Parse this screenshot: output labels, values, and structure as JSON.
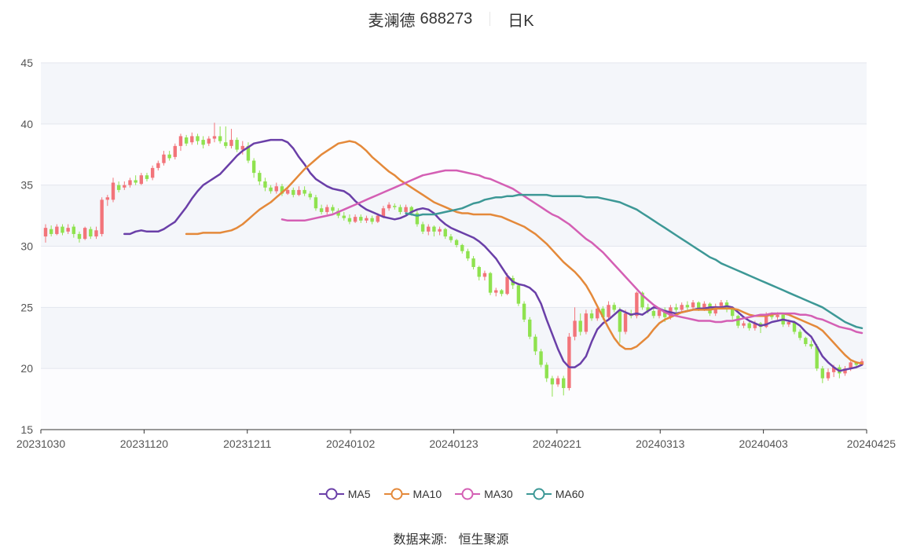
{
  "header": {
    "name": "麦澜德",
    "code": "688273",
    "period": "日K"
  },
  "footer": {
    "source_label": "数据来源:",
    "source_name": "恒生聚源"
  },
  "chart_data": {
    "type": "candlestick",
    "title": "麦澜德 688273 日K",
    "ylim": [
      15,
      45
    ],
    "yticks": [
      15,
      20,
      25,
      30,
      35,
      40,
      45
    ],
    "xtick_labels": [
      "20231030",
      "20231120",
      "20231211",
      "20240102",
      "20240123",
      "20240221",
      "20240313",
      "20240403",
      "20240425"
    ],
    "colors": {
      "up": "#f2747a",
      "down": "#8fe24f",
      "MA5": "#6a3fa8",
      "MA10": "#e4893a",
      "MA30": "#d45fb4",
      "MA60": "#3d9896"
    },
    "candles": [
      [
        30.8,
        31.5,
        30.3,
        31.8
      ],
      [
        31.4,
        31.0,
        30.8,
        31.7
      ],
      [
        31.0,
        31.6,
        30.9,
        31.8
      ],
      [
        31.6,
        31.1,
        30.9,
        31.8
      ],
      [
        31.2,
        31.5,
        31.0,
        31.8
      ],
      [
        31.6,
        31.0,
        30.7,
        31.8
      ],
      [
        31.0,
        30.6,
        30.3,
        31.2
      ],
      [
        30.6,
        31.5,
        30.5,
        31.6
      ],
      [
        31.4,
        30.8,
        30.6,
        31.6
      ],
      [
        30.8,
        31.3,
        30.6,
        31.6
      ],
      [
        31.0,
        33.8,
        30.8,
        34.0
      ],
      [
        33.8,
        34.0,
        33.3,
        34.2
      ],
      [
        33.8,
        35.2,
        33.6,
        35.6
      ],
      [
        35.0,
        34.6,
        34.4,
        35.3
      ],
      [
        34.8,
        35.0,
        34.6,
        35.3
      ],
      [
        35.0,
        35.4,
        34.8,
        35.6
      ],
      [
        35.4,
        35.2,
        35.0,
        35.8
      ],
      [
        35.1,
        35.8,
        35.0,
        36.0
      ],
      [
        35.8,
        35.5,
        35.3,
        36.0
      ],
      [
        35.6,
        36.4,
        35.4,
        36.6
      ],
      [
        36.4,
        36.8,
        36.2,
        37.0
      ],
      [
        36.8,
        37.5,
        36.6,
        37.8
      ],
      [
        37.5,
        37.2,
        37.0,
        37.8
      ],
      [
        37.3,
        38.2,
        37.1,
        38.4
      ],
      [
        38.2,
        39.0,
        37.8,
        39.2
      ],
      [
        38.9,
        38.4,
        38.2,
        39.1
      ],
      [
        38.5,
        39.0,
        38.3,
        39.3
      ],
      [
        39.0,
        38.6,
        38.3,
        39.2
      ],
      [
        38.7,
        38.3,
        38.0,
        39.0
      ],
      [
        38.4,
        38.8,
        38.2,
        39.0
      ],
      [
        38.8,
        39.0,
        38.5,
        40.1
      ],
      [
        39.0,
        38.6,
        38.4,
        39.8
      ],
      [
        38.5,
        38.2,
        38.0,
        39.8
      ],
      [
        38.2,
        38.7,
        38.0,
        39.6
      ],
      [
        38.7,
        37.9,
        37.7,
        38.9
      ],
      [
        37.9,
        38.2,
        37.5,
        38.6
      ],
      [
        38.2,
        37.0,
        36.8,
        38.5
      ],
      [
        37.0,
        36.0,
        35.6,
        37.2
      ],
      [
        36.0,
        35.3,
        35.0,
        36.2
      ],
      [
        35.3,
        34.8,
        34.5,
        35.6
      ],
      [
        34.8,
        34.5,
        34.3,
        35.0
      ],
      [
        34.5,
        34.9,
        34.3,
        35.2
      ],
      [
        34.9,
        34.3,
        34.1,
        35.1
      ],
      [
        34.3,
        34.6,
        34.2,
        34.9
      ],
      [
        34.6,
        34.2,
        34.0,
        34.8
      ],
      [
        34.2,
        34.6,
        34.1,
        34.9
      ],
      [
        34.6,
        34.3,
        34.1,
        34.9
      ],
      [
        34.3,
        34.0,
        33.8,
        34.5
      ],
      [
        34.0,
        33.1,
        32.9,
        34.2
      ],
      [
        33.1,
        32.8,
        32.6,
        33.4
      ],
      [
        32.8,
        33.2,
        32.6,
        33.4
      ],
      [
        33.2,
        32.9,
        32.7,
        33.4
      ],
      [
        32.9,
        32.5,
        32.3,
        33.1
      ],
      [
        32.5,
        32.3,
        32.1,
        32.8
      ],
      [
        32.3,
        32.0,
        31.8,
        32.6
      ],
      [
        32.0,
        32.4,
        31.9,
        32.6
      ],
      [
        32.4,
        32.1,
        31.9,
        32.6
      ],
      [
        32.1,
        32.3,
        31.9,
        32.5
      ],
      [
        32.3,
        32.0,
        31.8,
        32.5
      ],
      [
        32.0,
        32.5,
        31.9,
        32.7
      ],
      [
        32.4,
        33.1,
        32.3,
        33.3
      ],
      [
        33.1,
        33.4,
        32.9,
        33.6
      ],
      [
        33.3,
        33.2,
        33.0,
        33.5
      ],
      [
        33.2,
        32.8,
        32.6,
        33.4
      ],
      [
        32.8,
        33.2,
        32.6,
        33.4
      ],
      [
        33.2,
        32.7,
        32.5,
        33.3
      ],
      [
        32.7,
        31.8,
        31.6,
        32.9
      ],
      [
        31.8,
        31.2,
        31.0,
        32.0
      ],
      [
        31.2,
        31.6,
        30.9,
        31.8
      ],
      [
        31.6,
        31.2,
        30.8,
        31.7
      ],
      [
        31.2,
        31.4,
        30.9,
        31.6
      ],
      [
        31.4,
        30.8,
        30.6,
        31.5
      ],
      [
        30.8,
        30.5,
        30.3,
        31.0
      ],
      [
        30.5,
        30.1,
        29.9,
        30.6
      ],
      [
        30.1,
        29.6,
        29.4,
        30.2
      ],
      [
        29.6,
        29.0,
        28.8,
        29.8
      ],
      [
        29.0,
        28.3,
        28.1,
        29.2
      ],
      [
        28.3,
        27.5,
        27.2,
        28.4
      ],
      [
        27.5,
        27.8,
        27.2,
        28.0
      ],
      [
        27.8,
        26.2,
        26.0,
        27.9
      ],
      [
        26.2,
        26.4,
        25.9,
        26.6
      ],
      [
        26.4,
        26.1,
        25.9,
        26.5
      ],
      [
        26.1,
        27.5,
        26.0,
        27.8
      ],
      [
        27.4,
        26.8,
        26.5,
        27.6
      ],
      [
        26.8,
        25.3,
        25.1,
        27.0
      ],
      [
        25.3,
        24.0,
        23.8,
        25.5
      ],
      [
        24.0,
        22.6,
        22.4,
        24.2
      ],
      [
        22.6,
        21.4,
        21.1,
        22.8
      ],
      [
        21.4,
        20.3,
        20.1,
        21.6
      ],
      [
        20.3,
        19.2,
        18.9,
        20.5
      ],
      [
        19.2,
        18.7,
        17.7,
        19.4
      ],
      [
        18.7,
        19.2,
        18.5,
        19.4
      ],
      [
        19.2,
        18.4,
        17.8,
        19.4
      ],
      [
        18.4,
        22.6,
        18.2,
        22.9
      ],
      [
        22.6,
        23.9,
        22.3,
        25.0
      ],
      [
        23.9,
        23.0,
        22.7,
        24.5
      ],
      [
        23.0,
        24.5,
        22.8,
        24.8
      ],
      [
        24.5,
        24.1,
        23.9,
        24.8
      ],
      [
        24.1,
        24.9,
        23.9,
        25.2
      ],
      [
        24.9,
        24.2,
        24.0,
        25.1
      ],
      [
        24.2,
        25.2,
        24.0,
        25.5
      ],
      [
        25.2,
        24.8,
        24.6,
        25.4
      ],
      [
        24.8,
        23.0,
        22.1,
        25.0
      ],
      [
        23.0,
        24.5,
        22.8,
        24.8
      ],
      [
        24.5,
        24.3,
        24.1,
        24.8
      ],
      [
        24.3,
        26.2,
        24.1,
        26.3
      ],
      [
        26.2,
        25.0,
        24.8,
        26.3
      ],
      [
        25.0,
        24.7,
        24.5,
        25.3
      ],
      [
        24.7,
        24.3,
        24.1,
        24.9
      ],
      [
        24.3,
        24.8,
        24.1,
        25.0
      ],
      [
        24.8,
        24.2,
        23.8,
        25.0
      ],
      [
        24.2,
        25.0,
        24.0,
        25.2
      ],
      [
        25.0,
        24.8,
        24.6,
        25.3
      ],
      [
        24.8,
        25.2,
        24.6,
        25.4
      ],
      [
        25.2,
        25.0,
        24.8,
        25.5
      ],
      [
        25.0,
        25.4,
        24.8,
        25.6
      ],
      [
        25.4,
        24.9,
        24.7,
        25.5
      ],
      [
        24.9,
        25.3,
        24.7,
        25.5
      ],
      [
        25.3,
        24.5,
        24.3,
        25.4
      ],
      [
        24.5,
        25.1,
        24.3,
        25.3
      ],
      [
        25.1,
        25.4,
        24.9,
        25.6
      ],
      [
        25.4,
        24.9,
        24.6,
        25.6
      ],
      [
        24.9,
        24.3,
        24.0,
        25.0
      ],
      [
        24.3,
        23.5,
        23.3,
        24.4
      ],
      [
        23.5,
        23.7,
        23.3,
        23.9
      ],
      [
        23.7,
        23.3,
        23.1,
        23.8
      ],
      [
        23.3,
        23.7,
        23.1,
        23.9
      ],
      [
        23.7,
        23.4,
        22.9,
        23.8
      ],
      [
        23.4,
        24.4,
        23.3,
        24.6
      ],
      [
        24.4,
        24.2,
        24.0,
        24.6
      ],
      [
        24.2,
        24.4,
        24.0,
        24.6
      ],
      [
        24.4,
        23.6,
        23.4,
        24.5
      ],
      [
        23.6,
        23.8,
        23.4,
        24.0
      ],
      [
        23.8,
        23.0,
        22.8,
        23.9
      ],
      [
        23.0,
        22.5,
        22.3,
        23.2
      ],
      [
        22.5,
        22.0,
        21.8,
        22.6
      ],
      [
        22.0,
        21.8,
        21.6,
        22.3
      ],
      [
        21.8,
        20.0,
        19.8,
        22.0
      ],
      [
        20.0,
        19.2,
        18.8,
        20.2
      ],
      [
        19.2,
        19.7,
        19.0,
        20.0
      ],
      [
        19.7,
        20.1,
        19.3,
        20.3
      ],
      [
        20.1,
        19.6,
        19.2,
        20.3
      ],
      [
        19.6,
        20.0,
        19.4,
        20.2
      ],
      [
        20.0,
        20.5,
        19.8,
        20.6
      ],
      [
        20.5,
        20.3,
        20.1,
        20.6
      ],
      [
        20.3,
        20.6,
        20.2,
        20.8
      ]
    ],
    "series": [
      {
        "name": "MA5",
        "values": [
          31.0,
          31.0,
          31.2,
          31.3,
          31.2,
          31.2,
          31.2,
          31.4,
          31.7,
          32.0,
          32.6,
          33.2,
          33.9,
          34.5,
          35.0,
          35.3,
          35.6,
          35.9,
          36.4,
          36.9,
          37.4,
          37.8,
          38.1,
          38.4,
          38.5,
          38.6,
          38.7,
          38.7,
          38.7,
          38.5,
          38.0,
          37.3,
          36.7,
          36.0,
          35.5,
          35.2,
          34.9,
          34.7,
          34.6,
          34.5,
          34.2,
          33.7,
          33.3,
          33.0,
          32.8,
          32.6,
          32.4,
          32.3,
          32.2,
          32.3,
          32.5,
          32.8,
          33.0,
          33.1,
          33.0,
          32.7,
          32.2,
          31.8,
          31.5,
          31.3,
          31.1,
          30.9,
          30.7,
          30.4,
          30.0,
          29.5,
          29.0,
          28.3,
          27.6,
          27.1,
          26.9,
          26.8,
          26.6,
          26.2,
          25.3,
          24.0,
          22.8,
          21.6,
          20.6,
          20.1,
          20.1,
          20.4,
          21.0,
          22.2,
          23.2,
          23.7,
          24.0,
          24.4,
          24.8,
          24.6,
          24.4,
          24.5,
          24.4,
          24.7,
          25.0,
          24.9,
          24.7,
          24.6,
          24.5,
          24.6,
          24.7,
          24.8,
          24.9,
          24.9,
          25.0,
          25.0,
          25.0,
          25.1,
          25.0,
          24.6,
          24.2,
          23.9,
          23.7,
          23.5,
          23.6,
          23.8,
          23.9,
          24.0,
          23.9,
          23.8,
          23.5,
          23.0,
          22.6,
          21.8,
          21.0,
          20.5,
          20.1,
          19.8,
          19.9,
          20.0,
          20.1,
          20.3
        ]
      },
      {
        "name": "MA10",
        "values": [
          31.0,
          31.0,
          31.0,
          31.1,
          31.1,
          31.1,
          31.1,
          31.2,
          31.3,
          31.5,
          31.8,
          32.2,
          32.6,
          33.0,
          33.3,
          33.6,
          34.0,
          34.4,
          34.8,
          35.3,
          35.8,
          36.3,
          36.7,
          37.1,
          37.5,
          37.8,
          38.1,
          38.4,
          38.5,
          38.6,
          38.5,
          38.2,
          37.8,
          37.3,
          36.9,
          36.5,
          36.1,
          35.8,
          35.4,
          35.1,
          34.8,
          34.5,
          34.2,
          33.9,
          33.6,
          33.4,
          33.2,
          33.0,
          32.8,
          32.7,
          32.7,
          32.6,
          32.6,
          32.6,
          32.6,
          32.5,
          32.4,
          32.2,
          32.0,
          31.8,
          31.6,
          31.3,
          31.0,
          30.6,
          30.2,
          29.7,
          29.2,
          28.7,
          28.3,
          27.9,
          27.4,
          26.8,
          26.0,
          25.1,
          24.2,
          23.3,
          22.5,
          21.9,
          21.6,
          21.6,
          21.8,
          22.2,
          22.6,
          23.2,
          23.7,
          24.0,
          24.2,
          24.4,
          24.6,
          24.7,
          24.8,
          24.8,
          24.8,
          24.8,
          24.9,
          24.9,
          24.9,
          24.9,
          24.8,
          24.6,
          24.4,
          24.3,
          24.3,
          24.3,
          24.4,
          24.5,
          24.5,
          24.4,
          24.2,
          24.0,
          23.8,
          23.6,
          23.4,
          23.1,
          22.6,
          22.1,
          21.6,
          21.1,
          20.7,
          20.5,
          20.4
        ]
      },
      {
        "name": "MA30",
        "values": [
          32.2,
          32.1,
          32.1,
          32.1,
          32.1,
          32.2,
          32.3,
          32.4,
          32.5,
          32.6,
          32.8,
          33.0,
          33.2,
          33.4,
          33.6,
          33.8,
          34.0,
          34.2,
          34.4,
          34.6,
          34.8,
          35.0,
          35.2,
          35.4,
          35.6,
          35.8,
          35.9,
          36.0,
          36.1,
          36.2,
          36.2,
          36.2,
          36.1,
          36.0,
          35.9,
          35.8,
          35.6,
          35.5,
          35.3,
          35.1,
          34.9,
          34.7,
          34.4,
          34.1,
          33.8,
          33.5,
          33.2,
          32.9,
          32.6,
          32.4,
          32.1,
          31.8,
          31.4,
          31.0,
          30.6,
          30.3,
          29.9,
          29.5,
          29.0,
          28.5,
          28.0,
          27.5,
          27.0,
          26.5,
          26.0,
          25.6,
          25.2,
          24.9,
          24.6,
          24.4,
          24.3,
          24.2,
          24.1,
          24.0,
          23.9,
          23.9,
          23.9,
          23.8,
          23.8,
          23.9,
          23.9,
          24.0,
          24.1,
          24.2,
          24.3,
          24.4,
          24.4,
          24.5,
          24.5,
          24.5,
          24.5,
          24.5,
          24.4,
          24.4,
          24.3,
          24.1,
          24.0,
          23.8,
          23.6,
          23.4,
          23.3,
          23.2,
          23.0,
          22.9
        ]
      },
      {
        "name": "MA60",
        "values": [
          32.7,
          32.6,
          32.5,
          32.6,
          32.6,
          32.6,
          32.7,
          32.8,
          32.9,
          33.0,
          33.1,
          33.3,
          33.5,
          33.6,
          33.8,
          33.9,
          34.0,
          34.0,
          34.1,
          34.1,
          34.2,
          34.2,
          34.2,
          34.2,
          34.2,
          34.2,
          34.1,
          34.1,
          34.1,
          34.1,
          34.1,
          34.1,
          34.0,
          34.0,
          34.0,
          33.9,
          33.8,
          33.7,
          33.6,
          33.4,
          33.2,
          33.0,
          32.7,
          32.4,
          32.1,
          31.8,
          31.5,
          31.2,
          30.9,
          30.6,
          30.3,
          30.0,
          29.7,
          29.4,
          29.1,
          28.9,
          28.6,
          28.4,
          28.2,
          28.0,
          27.8,
          27.6,
          27.4,
          27.2,
          27.0,
          26.8,
          26.6,
          26.4,
          26.2,
          26.0,
          25.8,
          25.6,
          25.4,
          25.2,
          25.0,
          24.7,
          24.4,
          24.1,
          23.8,
          23.6,
          23.4,
          23.3
        ]
      }
    ]
  }
}
